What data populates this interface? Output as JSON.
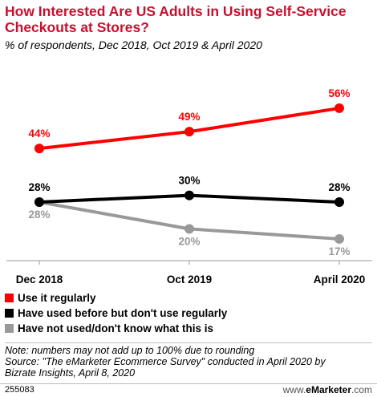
{
  "header": {
    "title": "How Interested Are US Adults in Using Self-Service Checkouts at Stores?",
    "subtitle": "% of respondents, Dec 2018, Oct 2019 & April 2020"
  },
  "chart_data": {
    "type": "line",
    "categories": [
      "Dec 2018",
      "Oct 2019",
      "April 2020"
    ],
    "ylim": [
      0,
      70
    ],
    "grid": false,
    "legend_position": "bottom-left",
    "series": [
      {
        "name": "Use it regularly",
        "values": [
          44,
          49,
          56
        ],
        "labels": [
          "44%",
          "49%",
          "56%"
        ],
        "color": "#ff0000"
      },
      {
        "name": "Have used before but don't use regularly",
        "values": [
          28,
          30,
          28
        ],
        "labels": [
          "28%",
          "30%",
          "28%"
        ],
        "color": "#000000"
      },
      {
        "name": "Have not used/don't know what this is",
        "values": [
          28,
          20,
          17
        ],
        "labels": [
          "28%",
          "20%",
          "17%"
        ],
        "color": "#999999"
      }
    ]
  },
  "footnote": {
    "line1": "Note: numbers may not add up to 100% due to rounding",
    "line2": "Source: \"The eMarketer Ecommerce Survey\" conducted in April 2020 by",
    "line3": "Bizrate Insights, April 8, 2020"
  },
  "footer": {
    "chart_id": "255083",
    "logo_prefix": "www.",
    "logo_brand": "eMarketer",
    "logo_suffix": ".com"
  }
}
